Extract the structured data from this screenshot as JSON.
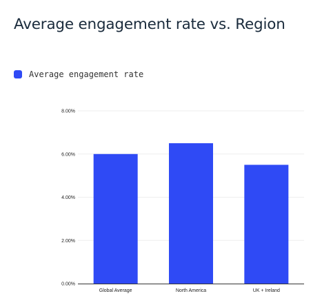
{
  "chart_data": {
    "type": "bar",
    "title": "Average engagement rate vs. Region",
    "xlabel": "",
    "ylabel": "",
    "categories": [
      "Global Average",
      "North America",
      "UK + Ireland"
    ],
    "series": [
      {
        "name": "Average engagement rate",
        "values": [
          6.0,
          6.5,
          5.5
        ],
        "color": "#2f4af5"
      }
    ],
    "ylim": [
      0,
      8
    ],
    "yticks": [
      0,
      2,
      4,
      6,
      8
    ],
    "ytick_labels": [
      "0.00%",
      "2.00%",
      "4.00%",
      "6.00%",
      "8.00%"
    ],
    "grid": true,
    "legend_position": "top-left"
  }
}
